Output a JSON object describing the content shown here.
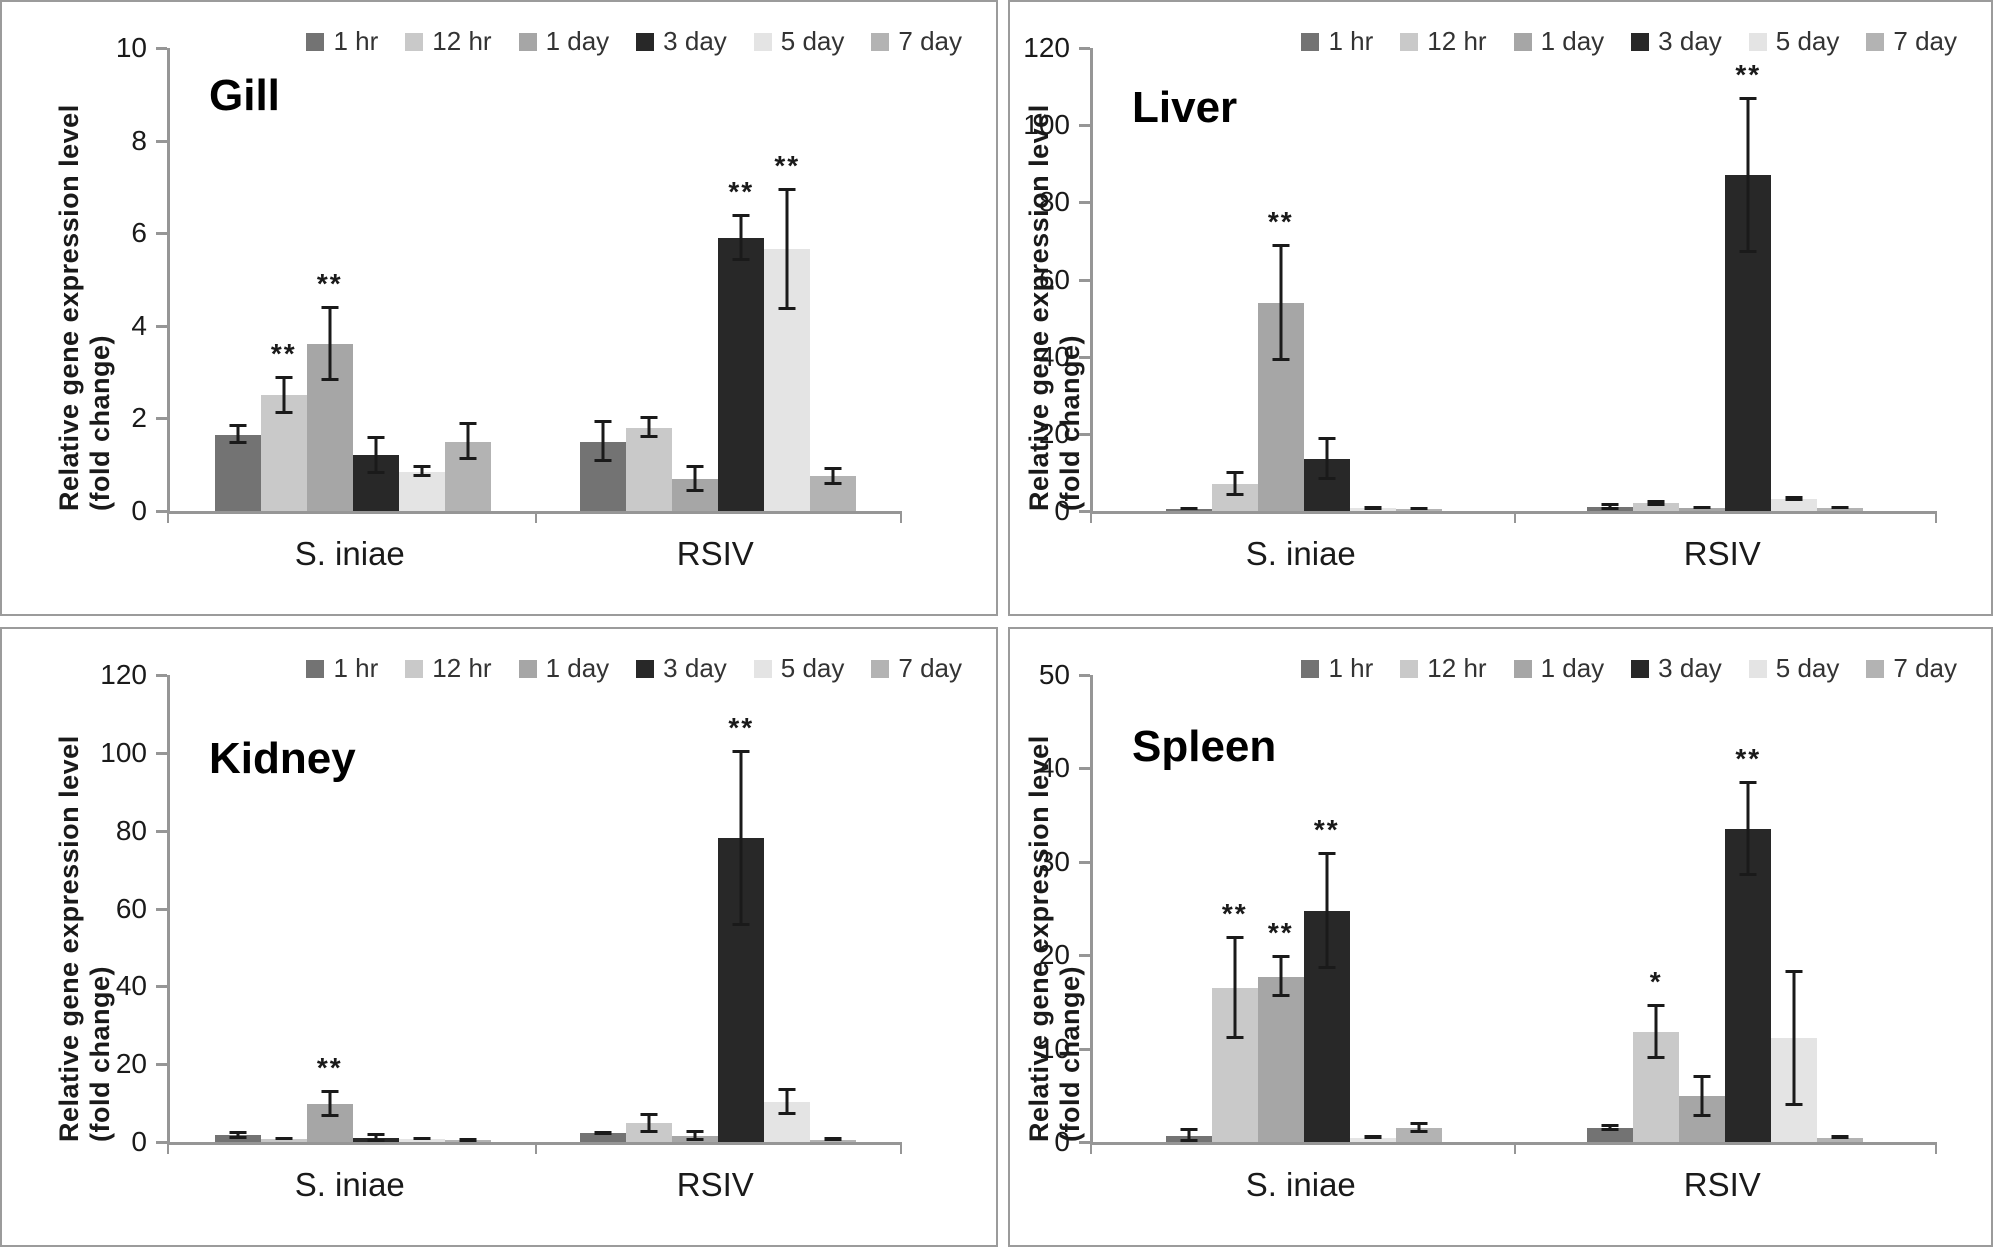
{
  "figure": {
    "background": "#ffffff",
    "panel_border_color": "#9b9b9b",
    "axis_color": "#969696",
    "error_bar_color": "#1a1a1a",
    "legend": [
      "1 hr",
      "12 hr",
      "1 day",
      "3 day",
      "5 day",
      "7 day"
    ],
    "series_colors": {
      "1 hr": "#737373",
      "12 hr": "#c9c9c9",
      "1 day": "#a6a6a6",
      "3 day": "#282828",
      "5 day": "#e4e4e4",
      "7 day": "#b3b3b3"
    },
    "significance_marks": [
      "*",
      "**"
    ]
  },
  "chart_data": [
    {
      "type": "bar",
      "title": "Gill",
      "ylabel": "Relative gene expression level (fold change)",
      "xlabel": "",
      "ylim": [
        0,
        10
      ],
      "ytick_step": 2,
      "grid": false,
      "legend_position": "top-right",
      "categories": [
        "S. iniae",
        "RSIV"
      ],
      "series": [
        {
          "name": "1 hr",
          "color": "#737373",
          "values": [
            1.65,
            1.5
          ],
          "errors": [
            0.2,
            0.45
          ],
          "sig": [
            "",
            ""
          ]
        },
        {
          "name": "12 hr",
          "color": "#c9c9c9",
          "values": [
            2.5,
            1.8
          ],
          "errors": [
            0.4,
            0.22
          ],
          "sig": [
            "**",
            ""
          ]
        },
        {
          "name": "1 day",
          "color": "#a6a6a6",
          "values": [
            3.6,
            0.7
          ],
          "errors": [
            0.8,
            0.28
          ],
          "sig": [
            "**",
            ""
          ]
        },
        {
          "name": "3 day",
          "color": "#282828",
          "values": [
            1.2,
            5.9
          ],
          "errors": [
            0.4,
            0.5
          ],
          "sig": [
            "",
            "**"
          ]
        },
        {
          "name": "5 day",
          "color": "#e4e4e4",
          "values": [
            0.85,
            5.65
          ],
          "errors": [
            0.12,
            1.3
          ],
          "sig": [
            "",
            "**"
          ]
        },
        {
          "name": "7 day",
          "color": "#b3b3b3",
          "values": [
            1.5,
            0.75
          ],
          "errors": [
            0.4,
            0.18
          ],
          "sig": [
            "",
            ""
          ]
        }
      ]
    },
    {
      "type": "bar",
      "title": "Liver",
      "ylabel": "Relative gene expression level (fold change)",
      "xlabel": "",
      "ylim": [
        0,
        120
      ],
      "ytick_step": 20,
      "grid": false,
      "legend_position": "top-right",
      "categories": [
        "S. iniae",
        "RSIV"
      ],
      "series": [
        {
          "name": "1 hr",
          "color": "#737373",
          "values": [
            0.5,
            1.0
          ],
          "errors": [
            0.3,
            0.7
          ],
          "sig": [
            "",
            ""
          ]
        },
        {
          "name": "12 hr",
          "color": "#c9c9c9",
          "values": [
            7.0,
            2.0
          ],
          "errors": [
            3.0,
            0.7
          ],
          "sig": [
            "",
            ""
          ]
        },
        {
          "name": "1 day",
          "color": "#a6a6a6",
          "values": [
            54.0,
            0.8
          ],
          "errors": [
            15.0,
            0.3
          ],
          "sig": [
            "**",
            ""
          ]
        },
        {
          "name": "3 day",
          "color": "#282828",
          "values": [
            13.5,
            87.0
          ],
          "errors": [
            5.5,
            20.0
          ],
          "sig": [
            "",
            "**"
          ]
        },
        {
          "name": "5 day",
          "color": "#e4e4e4",
          "values": [
            0.7,
            3.2
          ],
          "errors": [
            0.2,
            0.5
          ],
          "sig": [
            "",
            ""
          ]
        },
        {
          "name": "7 day",
          "color": "#b3b3b3",
          "values": [
            0.5,
            0.8
          ],
          "errors": [
            0.2,
            0.3
          ],
          "sig": [
            "",
            ""
          ]
        }
      ]
    },
    {
      "type": "bar",
      "title": "Kidney",
      "ylabel": "Relative gene expression level (fold change)",
      "xlabel": "",
      "ylim": [
        0,
        120
      ],
      "ytick_step": 20,
      "grid": false,
      "legend_position": "top-right",
      "categories": [
        "S. iniae",
        "RSIV"
      ],
      "series": [
        {
          "name": "1 hr",
          "color": "#737373",
          "values": [
            1.7,
            2.2
          ],
          "errors": [
            1.0,
            0.5
          ],
          "sig": [
            "",
            ""
          ]
        },
        {
          "name": "12 hr",
          "color": "#c9c9c9",
          "values": [
            0.8,
            4.8
          ],
          "errors": [
            0.3,
            2.5
          ],
          "sig": [
            "",
            ""
          ]
        },
        {
          "name": "1 day",
          "color": "#a6a6a6",
          "values": [
            9.8,
            1.5
          ],
          "errors": [
            3.4,
            1.3
          ],
          "sig": [
            "**",
            ""
          ]
        },
        {
          "name": "3 day",
          "color": "#282828",
          "values": [
            1.0,
            78.0
          ],
          "errors": [
            1.0,
            22.5
          ],
          "sig": [
            "",
            "**"
          ]
        },
        {
          "name": "5 day",
          "color": "#e4e4e4",
          "values": [
            0.7,
            10.3
          ],
          "errors": [
            0.3,
            3.4
          ],
          "sig": [
            "",
            ""
          ]
        },
        {
          "name": "7 day",
          "color": "#b3b3b3",
          "values": [
            0.4,
            0.6
          ],
          "errors": [
            0.2,
            0.2
          ],
          "sig": [
            "",
            ""
          ]
        }
      ]
    },
    {
      "type": "bar",
      "title": "Spleen",
      "ylabel": "Relative gene expression level (fold change)",
      "xlabel": "",
      "ylim": [
        0,
        50
      ],
      "ytick_step": 10,
      "grid": false,
      "legend_position": "top-right",
      "categories": [
        "S. iniae",
        "RSIV"
      ],
      "series": [
        {
          "name": "1 hr",
          "color": "#737373",
          "values": [
            0.6,
            1.5
          ],
          "errors": [
            0.8,
            0.35
          ],
          "sig": [
            "",
            ""
          ]
        },
        {
          "name": "12 hr",
          "color": "#c9c9c9",
          "values": [
            16.5,
            11.8
          ],
          "errors": [
            5.5,
            2.9
          ],
          "sig": [
            "**",
            "*"
          ]
        },
        {
          "name": "1 day",
          "color": "#a6a6a6",
          "values": [
            17.7,
            4.9
          ],
          "errors": [
            2.2,
            2.2
          ],
          "sig": [
            "**",
            ""
          ]
        },
        {
          "name": "3 day",
          "color": "#282828",
          "values": [
            24.7,
            33.5
          ],
          "errors": [
            6.2,
            5.0
          ],
          "sig": [
            "**",
            "**"
          ]
        },
        {
          "name": "5 day",
          "color": "#e4e4e4",
          "values": [
            0.45,
            11.1
          ],
          "errors": [
            0.15,
            7.2
          ],
          "sig": [
            "",
            ""
          ]
        },
        {
          "name": "7 day",
          "color": "#b3b3b3",
          "values": [
            1.5,
            0.45
          ],
          "errors": [
            0.5,
            0.15
          ],
          "sig": [
            "",
            ""
          ]
        }
      ]
    }
  ]
}
